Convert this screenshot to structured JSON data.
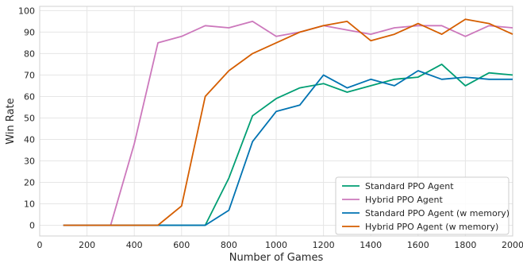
{
  "chart_data": {
    "type": "line",
    "title": "",
    "xlabel": "Number of Games",
    "ylabel": "Win Rate",
    "xlim": [
      0,
      2000
    ],
    "ylim": [
      -5,
      102
    ],
    "xticks": [
      0,
      200,
      400,
      600,
      800,
      1000,
      1200,
      1400,
      1600,
      1800,
      2000
    ],
    "yticks": [
      0,
      10,
      20,
      30,
      40,
      50,
      60,
      70,
      80,
      90,
      100
    ],
    "grid": true,
    "legend_position": "bottom-right",
    "x": [
      100,
      200,
      300,
      400,
      500,
      600,
      700,
      800,
      900,
      1000,
      1100,
      1200,
      1300,
      1400,
      1500,
      1600,
      1700,
      1800,
      1900,
      2000
    ],
    "series": [
      {
        "name": "Standard PPO Agent",
        "color": "#009E73",
        "values": [
          0,
          0,
          0,
          0,
          0,
          0,
          0,
          22,
          51,
          59,
          64,
          66,
          62,
          65,
          68,
          69,
          75,
          65,
          71,
          70
        ]
      },
      {
        "name": "Hybrid PPO Agent",
        "color": "#CC78BC",
        "values": [
          0,
          0,
          0,
          38,
          85,
          88,
          93,
          92,
          95,
          88,
          90,
          93,
          91,
          89,
          92,
          93,
          93,
          88,
          93,
          92
        ]
      },
      {
        "name": "Standard PPO Agent (w memory)",
        "color": "#0173B2",
        "values": [
          0,
          0,
          0,
          0,
          0,
          0,
          0,
          7,
          39,
          53,
          56,
          70,
          64,
          68,
          65,
          72,
          68,
          69,
          68,
          68
        ]
      },
      {
        "name": "Hybrid PPO Agent (w memory)",
        "color": "#D55E00",
        "values": [
          0,
          0,
          0,
          0,
          0,
          9,
          60,
          72,
          80,
          85,
          90,
          93,
          95,
          86,
          89,
          94,
          89,
          96,
          94,
          89
        ]
      }
    ]
  }
}
